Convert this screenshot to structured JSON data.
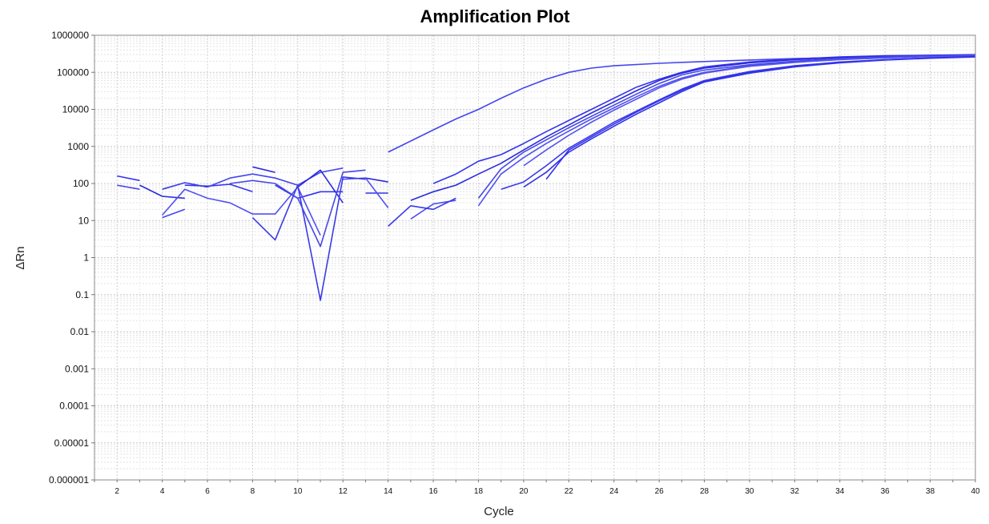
{
  "chart_data": {
    "type": "line",
    "title": "Amplification Plot",
    "xlabel": "Cycle",
    "ylabel": "ΔRn",
    "y_scale": "log",
    "xlim": [
      1,
      40
    ],
    "ylim": [
      1e-06,
      1000000
    ],
    "x_ticks": [
      2,
      4,
      6,
      8,
      10,
      12,
      14,
      16,
      18,
      20,
      22,
      24,
      26,
      28,
      30,
      32,
      34,
      36,
      38,
      40
    ],
    "y_ticks": [
      {
        "v": 1000000,
        "label": "1000000"
      },
      {
        "v": 100000,
        "label": "100000"
      },
      {
        "v": 10000,
        "label": "10000"
      },
      {
        "v": 1000,
        "label": "1000"
      },
      {
        "v": 100,
        "label": "100"
      },
      {
        "v": 10,
        "label": "10"
      },
      {
        "v": 1,
        "label": "1"
      },
      {
        "v": 0.1,
        "label": "0.1"
      },
      {
        "v": 0.01,
        "label": "0.01"
      },
      {
        "v": 0.001,
        "label": "0.001"
      },
      {
        "v": 0.0001,
        "label": "0.0001"
      },
      {
        "v": 1e-05,
        "label": "0.00001"
      },
      {
        "v": 1e-06,
        "label": "0.000001"
      }
    ],
    "grid": true,
    "line_colors": [
      "#3333ee",
      "#4545ee",
      "#2a2add",
      "#5050f0",
      "#3a3ae8",
      "#4848e6",
      "#3030e0",
      "#5555ee"
    ],
    "series": [
      {
        "segments": [
          [
            [
              2,
              160
            ],
            [
              3,
              120
            ]
          ],
          [
            [
              5,
              90
            ],
            [
              6,
              85
            ],
            [
              7,
              95
            ],
            [
              8,
              60
            ]
          ],
          [
            [
              9,
              90
            ],
            [
              10,
              40
            ],
            [
              11,
              60
            ],
            [
              12,
              60
            ]
          ],
          [
            [
              13,
              55
            ],
            [
              14,
              55
            ]
          ],
          [
            [
              16,
              100
            ],
            [
              17,
              180
            ],
            [
              18,
              400
            ],
            [
              19,
              600
            ],
            [
              20,
              1200
            ],
            [
              21,
              2500
            ],
            [
              22,
              5000
            ],
            [
              23,
              10000
            ],
            [
              24,
              20000
            ],
            [
              25,
              40000
            ],
            [
              26,
              65000
            ],
            [
              27,
              100000
            ],
            [
              28,
              140000
            ],
            [
              30,
              190000
            ],
            [
              32,
              230000
            ],
            [
              34,
              260000
            ],
            [
              36,
              280000
            ],
            [
              38,
              290000
            ],
            [
              40,
              300000
            ]
          ]
        ]
      },
      {
        "segments": [
          [
            [
              2,
              90
            ],
            [
              3,
              70
            ]
          ],
          [
            [
              4,
              12
            ],
            [
              5,
              20
            ]
          ],
          [
            [
              6,
              80
            ],
            [
              7,
              140
            ],
            [
              8,
              180
            ],
            [
              9,
              140
            ],
            [
              10,
              90
            ],
            [
              11,
              200
            ],
            [
              12,
              260
            ]
          ],
          [
            [
              14,
              700
            ],
            [
              15,
              1400
            ],
            [
              16,
              2800
            ],
            [
              17,
              5500
            ],
            [
              18,
              10000
            ],
            [
              19,
              20000
            ],
            [
              20,
              38000
            ],
            [
              21,
              65000
            ],
            [
              22,
              100000
            ],
            [
              23,
              130000
            ],
            [
              24,
              150000
            ],
            [
              26,
              175000
            ],
            [
              28,
              195000
            ],
            [
              30,
              215000
            ],
            [
              32,
              235000
            ],
            [
              34,
              250000
            ],
            [
              36,
              265000
            ],
            [
              38,
              275000
            ],
            [
              40,
              285000
            ]
          ]
        ]
      },
      {
        "segments": [
          [
            [
              3,
              90
            ],
            [
              4,
              45
            ],
            [
              5,
              40
            ]
          ],
          [
            [
              8,
              280
            ],
            [
              9,
              200
            ]
          ],
          [
            [
              10,
              80
            ],
            [
              11,
              230
            ],
            [
              12,
              30
            ]
          ],
          [
            [
              13,
              140
            ],
            [
              14,
              110
            ]
          ],
          [
            [
              15,
              35
            ],
            [
              16,
              60
            ],
            [
              17,
              90
            ],
            [
              18,
              180
            ],
            [
              19,
              350
            ],
            [
              20,
              800
            ],
            [
              21,
              1800
            ],
            [
              22,
              3800
            ],
            [
              23,
              8000
            ],
            [
              24,
              16000
            ],
            [
              25,
              32000
            ],
            [
              26,
              60000
            ],
            [
              27,
              95000
            ],
            [
              28,
              130000
            ],
            [
              30,
              180000
            ],
            [
              32,
              220000
            ],
            [
              34,
              250000
            ],
            [
              36,
              270000
            ],
            [
              38,
              285000
            ],
            [
              40,
              295000
            ]
          ]
        ]
      },
      {
        "segments": [
          [
            [
              4,
              14
            ],
            [
              5,
              70
            ],
            [
              6,
              40
            ],
            [
              7,
              30
            ],
            [
              8,
              15
            ],
            [
              9,
              15
            ],
            [
              10,
              80
            ],
            [
              11,
              4
            ]
          ],
          [
            [
              12,
              130
            ],
            [
              13,
              140
            ],
            [
              14,
              22
            ]
          ],
          [
            [
              15,
              11
            ],
            [
              16,
              28
            ],
            [
              17,
              35
            ]
          ],
          [
            [
              18,
              25
            ],
            [
              19,
              180
            ],
            [
              20,
              500
            ],
            [
              21,
              1200
            ],
            [
              22,
              2600
            ],
            [
              23,
              5500
            ],
            [
              24,
              11000
            ],
            [
              25,
              22000
            ],
            [
              26,
              42000
            ],
            [
              27,
              70000
            ],
            [
              28,
              100000
            ],
            [
              30,
              150000
            ],
            [
              32,
              190000
            ],
            [
              34,
              225000
            ],
            [
              36,
              250000
            ],
            [
              38,
              270000
            ],
            [
              40,
              285000
            ]
          ]
        ]
      },
      {
        "segments": [
          [
            [
              4,
              70
            ],
            [
              5,
              105
            ],
            [
              6,
              80
            ]
          ],
          [
            [
              8,
              12
            ],
            [
              9,
              3
            ],
            [
              10,
              90
            ],
            [
              11,
              0.07
            ],
            [
              12,
              150
            ],
            [
              13,
              130
            ]
          ],
          [
            [
              14,
              7
            ],
            [
              15,
              25
            ],
            [
              16,
              20
            ],
            [
              17,
              40
            ]
          ],
          [
            [
              19,
              70
            ],
            [
              20,
              110
            ],
            [
              21,
              300
            ],
            [
              22,
              900
            ],
            [
              23,
              2000
            ],
            [
              24,
              4500
            ],
            [
              25,
              9000
            ],
            [
              26,
              18000
            ],
            [
              27,
              35000
            ],
            [
              28,
              60000
            ],
            [
              30,
              105000
            ],
            [
              32,
              150000
            ],
            [
              34,
              190000
            ],
            [
              36,
              220000
            ],
            [
              38,
              245000
            ],
            [
              40,
              265000
            ]
          ]
        ]
      },
      {
        "segments": [
          [
            [
              7,
              100
            ],
            [
              8,
              120
            ],
            [
              9,
              100
            ],
            [
              10,
              40
            ],
            [
              11,
              2
            ],
            [
              12,
              200
            ],
            [
              13,
              230
            ]
          ],
          [
            [
              18,
              40
            ],
            [
              19,
              250
            ],
            [
              20,
              700
            ],
            [
              21,
              1500
            ],
            [
              22,
              3200
            ],
            [
              23,
              6500
            ],
            [
              24,
              13000
            ],
            [
              25,
              26000
            ],
            [
              26,
              50000
            ],
            [
              27,
              85000
            ],
            [
              28,
              115000
            ],
            [
              30,
              160000
            ],
            [
              32,
              200000
            ],
            [
              34,
              235000
            ],
            [
              36,
              260000
            ],
            [
              38,
              278000
            ],
            [
              40,
              290000
            ]
          ]
        ]
      },
      {
        "segments": [
          [
            [
              20,
              80
            ],
            [
              21,
              200
            ],
            [
              22,
              700
            ],
            [
              23,
              1600
            ],
            [
              24,
              3500
            ],
            [
              25,
              7500
            ],
            [
              26,
              15000
            ],
            [
              27,
              30000
            ],
            [
              28,
              55000
            ],
            [
              30,
              95000
            ],
            [
              32,
              140000
            ],
            [
              34,
              180000
            ],
            [
              36,
              215000
            ],
            [
              38,
              240000
            ],
            [
              40,
              260000
            ]
          ]
        ]
      },
      {
        "segments": [
          [
            [
              20,
              300
            ],
            [
              21,
              800
            ],
            [
              22,
              2000
            ],
            [
              23,
              4500
            ],
            [
              24,
              9500
            ],
            [
              25,
              19000
            ],
            [
              26,
              38000
            ],
            [
              27,
              65000
            ],
            [
              28,
              95000
            ],
            [
              30,
              145000
            ],
            [
              32,
              185000
            ],
            [
              34,
              220000
            ],
            [
              36,
              245000
            ],
            [
              38,
              265000
            ],
            [
              40,
              280000
            ]
          ]
        ]
      },
      {
        "segments": [
          [
            [
              21,
              130
            ],
            [
              22,
              800
            ],
            [
              23,
              1800
            ],
            [
              24,
              4000
            ],
            [
              25,
              8500
            ],
            [
              26,
              17000
            ],
            [
              27,
              33000
            ],
            [
              28,
              58000
            ],
            [
              30,
              100000
            ],
            [
              32,
              145000
            ],
            [
              34,
              185000
            ],
            [
              36,
              218000
            ],
            [
              38,
              245000
            ],
            [
              40,
              268000
            ]
          ]
        ]
      }
    ]
  }
}
